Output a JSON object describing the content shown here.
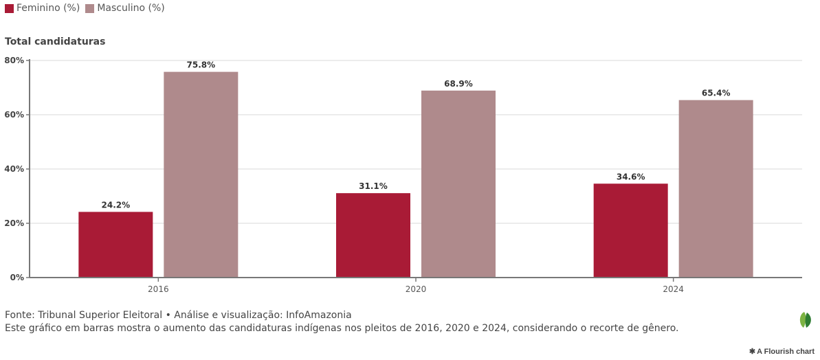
{
  "legend": [
    {
      "label": "Feminino (%)",
      "color": "#a91b36"
    },
    {
      "label": "Masculino (%)",
      "color": "#af8a8c"
    }
  ],
  "subtitle": "Total candidaturas",
  "footer": {
    "source": "Fonte: Tribunal Superior Eleitoral • Análise e visualização: InfoAmazonia",
    "description": "Este gráfico em barras mostra o aumento das candidaturas indígenas nos pleitos de 2016, 2020 e 2024, considerando o recorte de gênero."
  },
  "credit": {
    "icon": "asterisk-icon",
    "label": "A Flourish chart"
  },
  "logo": {
    "icon": "leaf-icon"
  },
  "chart_data": {
    "type": "bar",
    "title": "Total candidaturas",
    "xlabel": "",
    "ylabel": "",
    "categories": [
      "2016",
      "2020",
      "2024"
    ],
    "series": [
      {
        "name": "Feminino (%)",
        "color": "#a91b36",
        "values": [
          24.2,
          31.1,
          34.6
        ],
        "labels": [
          "24.2%",
          "31.1%",
          "34.6%"
        ]
      },
      {
        "name": "Masculino (%)",
        "color": "#af8a8c",
        "values": [
          75.8,
          68.9,
          65.4
        ],
        "labels": [
          "75.8%",
          "68.9%",
          "65.4%"
        ]
      }
    ],
    "ylim": [
      0,
      80
    ],
    "yticks": [
      0,
      20,
      40,
      60,
      80
    ],
    "ytick_labels": [
      "0%",
      "20%",
      "40%",
      "60%",
      "80%"
    ],
    "grid": true,
    "legend_position": "top-left"
  }
}
